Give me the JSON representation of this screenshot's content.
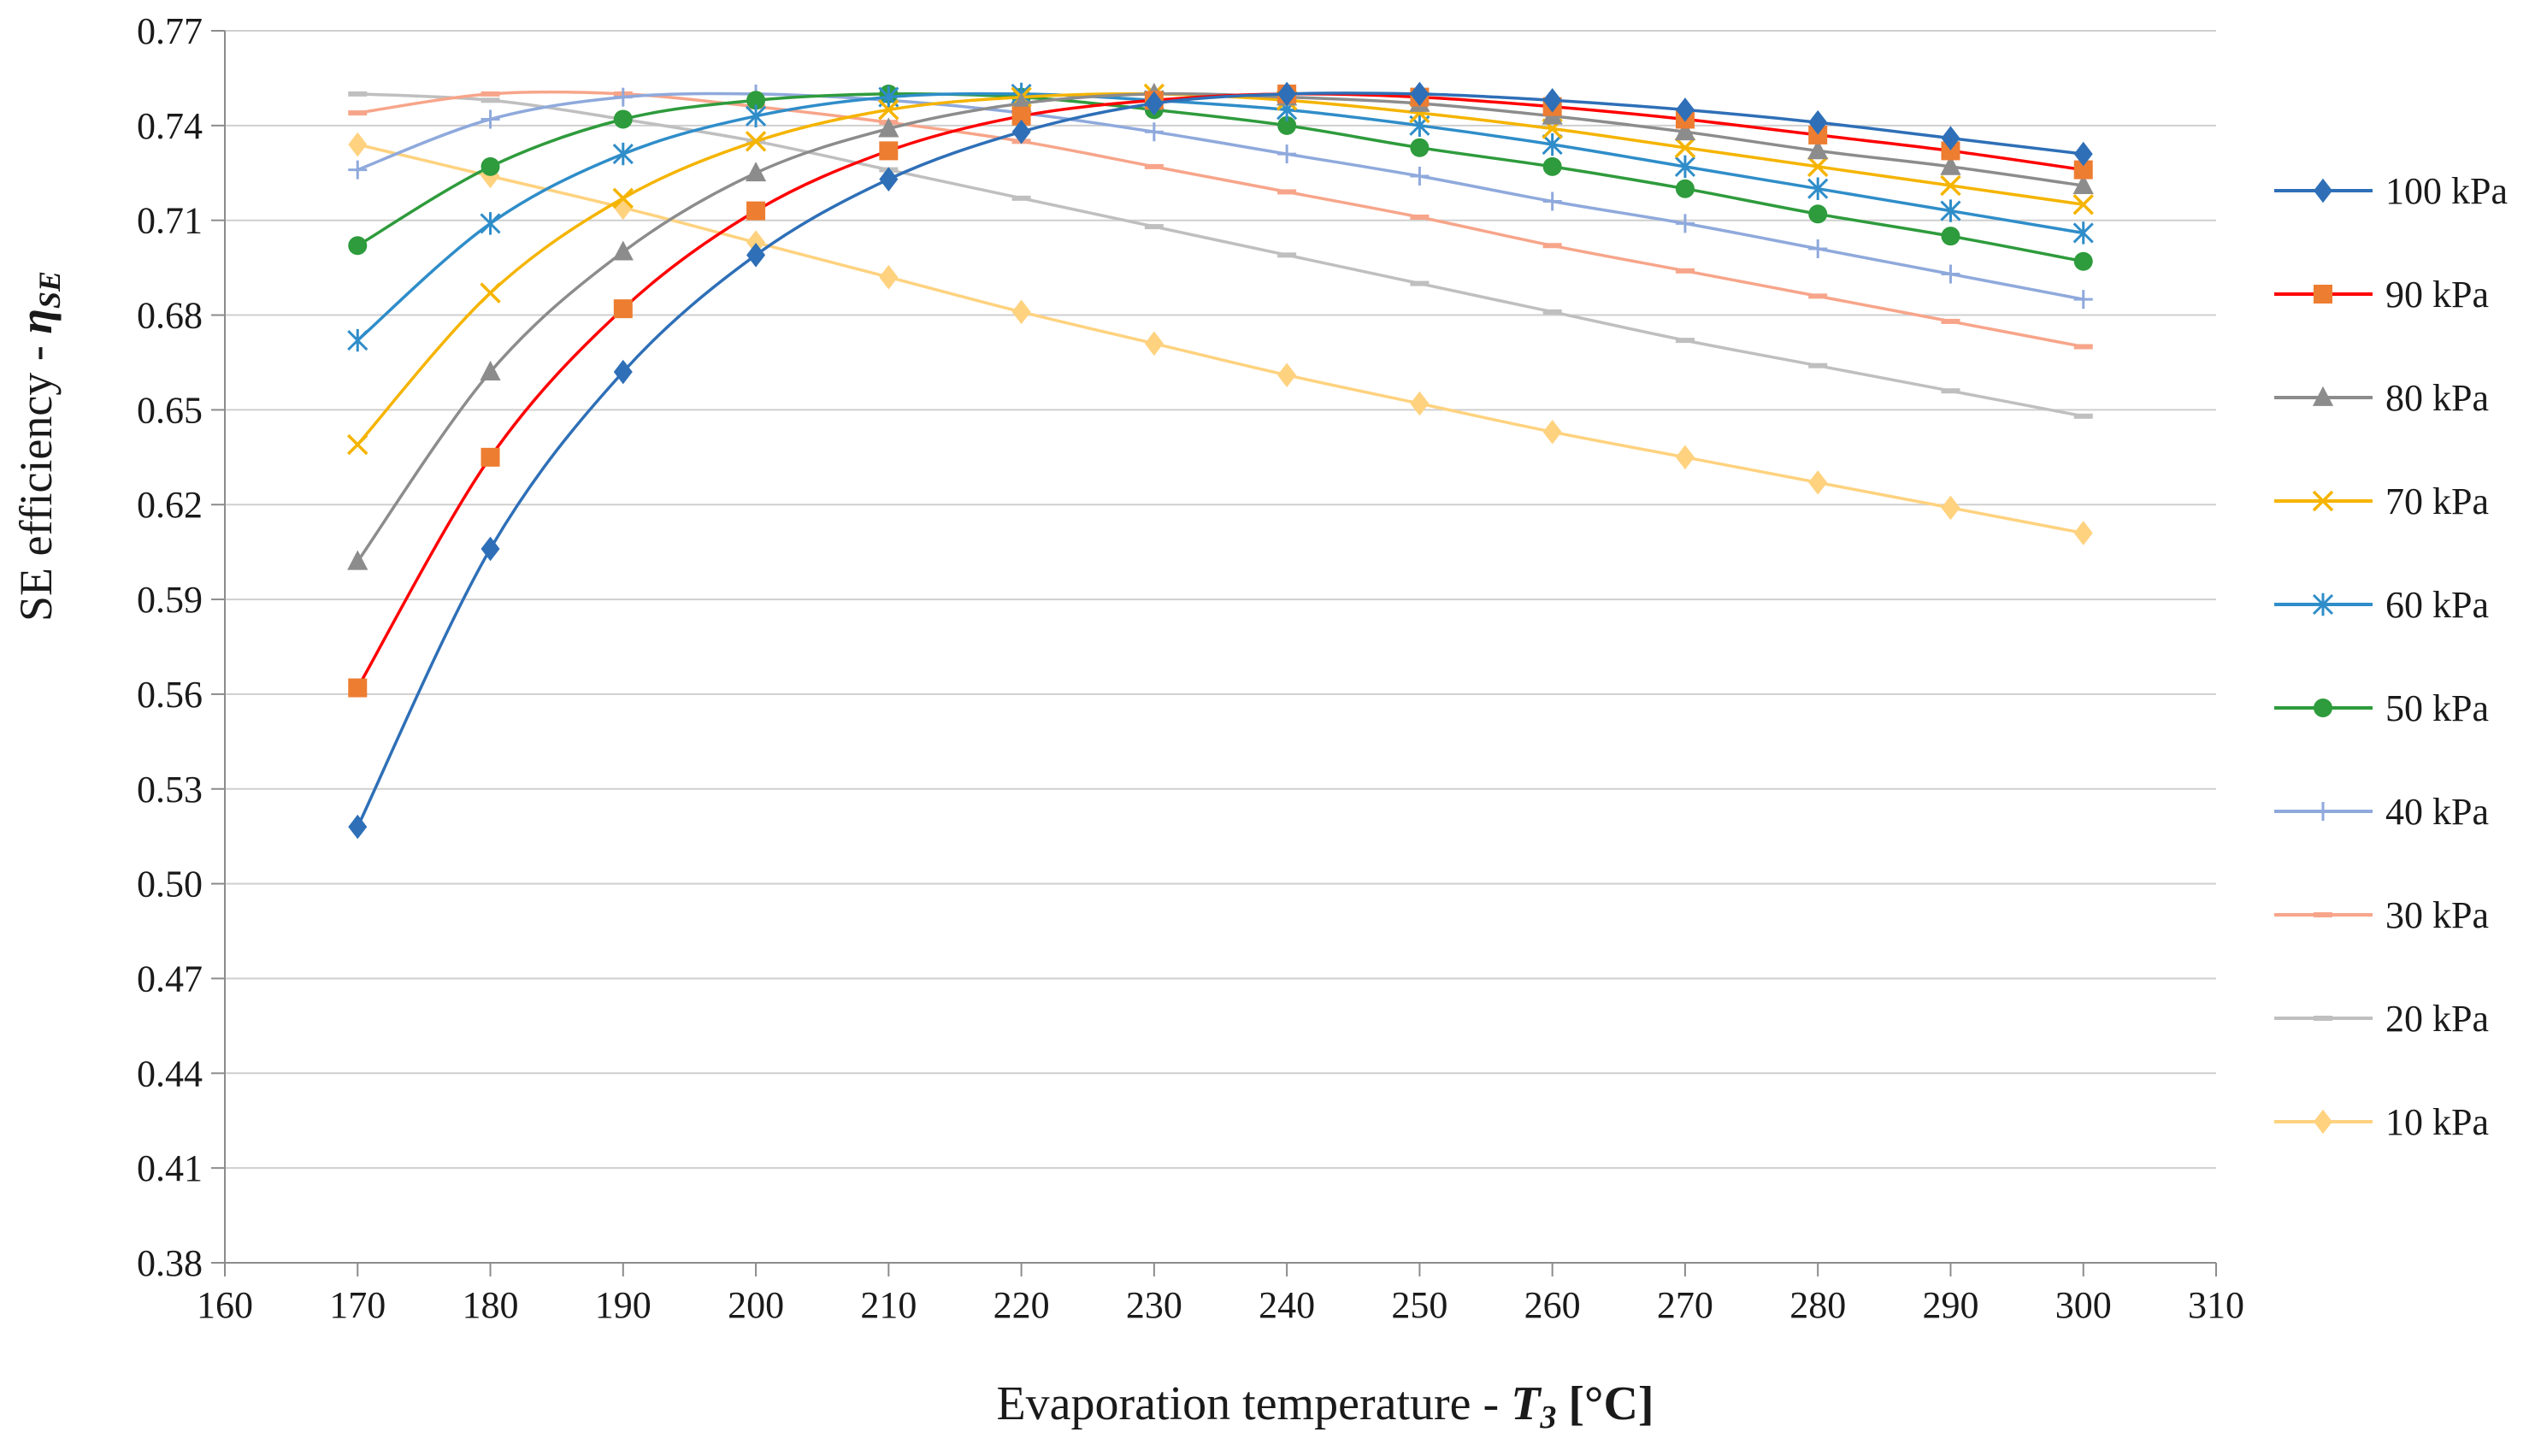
{
  "chart_data": {
    "type": "line",
    "title": "",
    "xlabel": "Evaporation temperature - ",
    "xlabel_var": "T",
    "xlabel_sub": "3",
    "xlabel_unit": " [°C]",
    "ylabel": "SE efficiency - ",
    "ylabel_var": "η",
    "ylabel_sub": "SE",
    "xlim": [
      160,
      310
    ],
    "ylim": [
      0.38,
      0.77
    ],
    "xticks": [
      160,
      170,
      180,
      190,
      200,
      210,
      220,
      230,
      240,
      250,
      260,
      270,
      280,
      290,
      300,
      310
    ],
    "yticks": [
      "0.38",
      "0.41",
      "0.44",
      "0.47",
      "0.50",
      "0.53",
      "0.56",
      "0.59",
      "0.62",
      "0.65",
      "0.68",
      "0.71",
      "0.74",
      "0.77"
    ],
    "grid": "horizontal",
    "legend_position": "right",
    "x": [
      170,
      180,
      190,
      200,
      210,
      220,
      230,
      240,
      250,
      260,
      270,
      280,
      290,
      300
    ],
    "series": [
      {
        "name": "100 kPa",
        "color": "#2e6fb7",
        "marker": "diamond",
        "values": [
          0.518,
          0.606,
          0.662,
          0.699,
          0.723,
          0.738,
          0.747,
          0.75,
          0.75,
          0.748,
          0.745,
          0.741,
          0.736,
          0.731
        ]
      },
      {
        "name": "90 kPa",
        "color": "#ff0000",
        "marker": "square",
        "markerColor": "#ed7d31",
        "values": [
          0.562,
          0.635,
          0.682,
          0.713,
          0.732,
          0.743,
          0.748,
          0.75,
          0.749,
          0.746,
          0.742,
          0.737,
          0.732,
          0.726
        ]
      },
      {
        "name": "80 kPa",
        "color": "#8c8c8c",
        "marker": "triangle",
        "values": [
          0.602,
          0.662,
          0.7,
          0.725,
          0.739,
          0.747,
          0.75,
          0.749,
          0.747,
          0.743,
          0.738,
          0.732,
          0.727,
          0.721
        ]
      },
      {
        "name": "70 kPa",
        "color": "#f5b400",
        "marker": "x",
        "values": [
          0.639,
          0.687,
          0.717,
          0.735,
          0.745,
          0.749,
          0.75,
          0.748,
          0.744,
          0.739,
          0.733,
          0.727,
          0.721,
          0.715
        ]
      },
      {
        "name": "60 kPa",
        "color": "#2f8dc9",
        "marker": "asterisk",
        "values": [
          0.672,
          0.709,
          0.731,
          0.743,
          0.749,
          0.75,
          0.748,
          0.745,
          0.74,
          0.734,
          0.727,
          0.72,
          0.713,
          0.706
        ]
      },
      {
        "name": "50 kPa",
        "color": "#2e9b3c",
        "marker": "circle",
        "values": [
          0.702,
          0.727,
          0.742,
          0.748,
          0.75,
          0.749,
          0.745,
          0.74,
          0.733,
          0.727,
          0.72,
          0.712,
          0.705,
          0.697
        ]
      },
      {
        "name": "40 kPa",
        "color": "#8fa9dc",
        "marker": "plus",
        "values": [
          0.726,
          0.742,
          0.749,
          0.75,
          0.748,
          0.744,
          0.738,
          0.731,
          0.724,
          0.716,
          0.709,
          0.701,
          0.693,
          0.685
        ]
      },
      {
        "name": "30 kPa",
        "color": "#f7a58a",
        "marker": "dash",
        "values": [
          0.744,
          0.75,
          0.75,
          0.746,
          0.741,
          0.735,
          0.727,
          0.719,
          0.711,
          0.702,
          0.694,
          0.686,
          0.678,
          0.67
        ]
      },
      {
        "name": "20 kPa",
        "color": "#bfbfbf",
        "marker": "dash",
        "values": [
          0.75,
          0.748,
          0.742,
          0.735,
          0.726,
          0.717,
          0.708,
          0.699,
          0.69,
          0.681,
          0.672,
          0.664,
          0.656,
          0.648
        ]
      },
      {
        "name": "10 kPa",
        "color": "#ffd27f",
        "marker": "diamond",
        "values": [
          0.734,
          0.724,
          0.714,
          0.703,
          0.692,
          0.681,
          0.671,
          0.661,
          0.652,
          0.643,
          0.635,
          0.627,
          0.619,
          0.611
        ]
      }
    ]
  }
}
